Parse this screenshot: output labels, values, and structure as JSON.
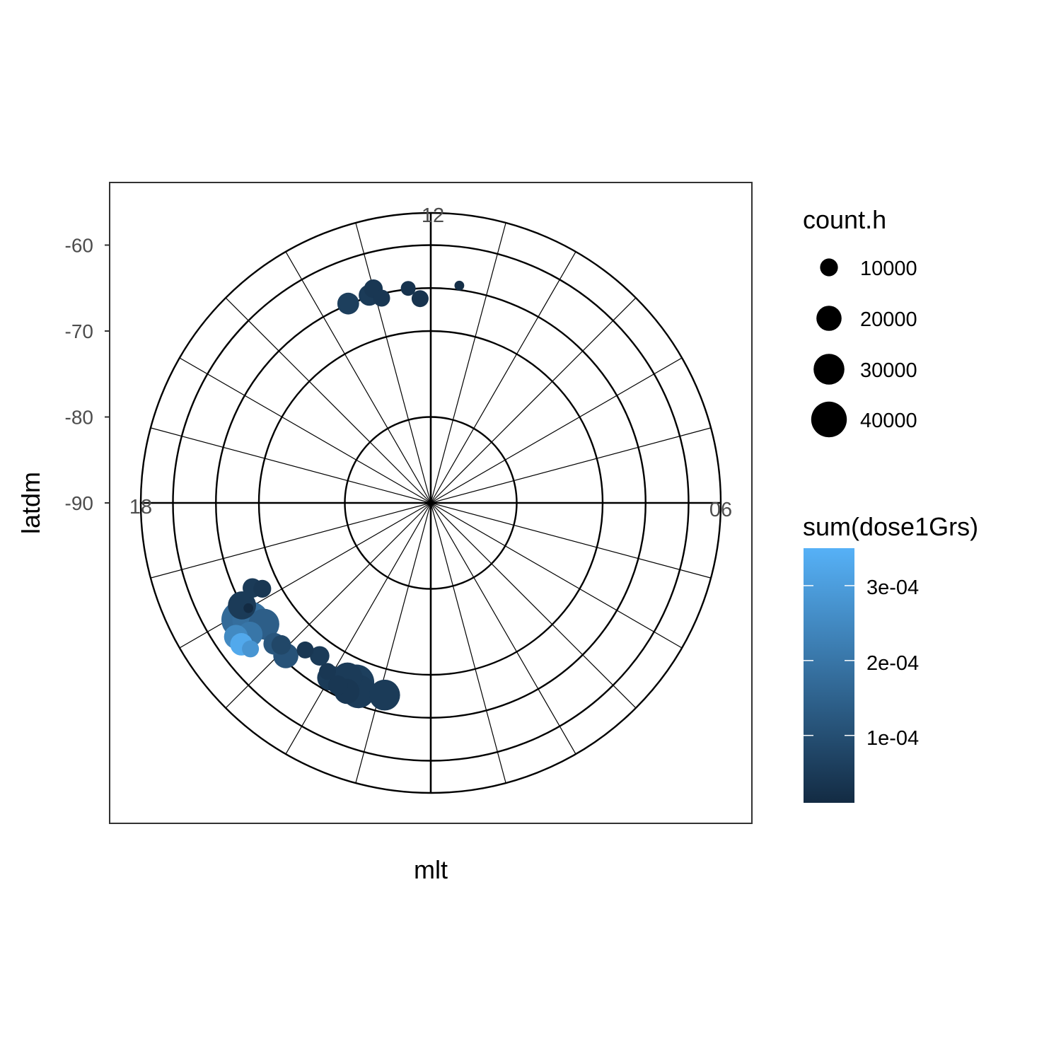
{
  "chart_data": {
    "type": "scatter",
    "coordinate_system": "polar",
    "xlabel": "mlt",
    "ylabel": "latdm",
    "y_ticks": [
      "-60",
      "-70",
      "-80",
      "-90"
    ],
    "ylim": [
      -90,
      -56
    ],
    "rings_deg": [
      -60,
      -65,
      -70,
      -80
    ],
    "spokes": 24,
    "clock_labels": [
      "12",
      "18",
      "06"
    ],
    "grid": true,
    "legend_position": "right",
    "size_legend": {
      "title": "count.h",
      "values": [
        10000,
        20000,
        30000,
        40000
      ],
      "labels": [
        "10000",
        "20000",
        "30000",
        "40000"
      ]
    },
    "color_legend": {
      "title": "sum(dose1Grs)",
      "range": [
        1e-05,
        0.00035
      ],
      "breaks": [
        0.0001,
        0.0002,
        0.0003
      ],
      "labels": [
        "1e-04",
        "2e-04",
        "3e-04"
      ],
      "low_color": "#132B43",
      "high_color": "#56B1F7"
    },
    "points": [
      {
        "mlt": 11.5,
        "lat": -64.5,
        "count": 3000,
        "dose": 2e-05
      },
      {
        "mlt": 12.2,
        "lat": -66.2,
        "count": 9000,
        "dose": 3e-05
      },
      {
        "mlt": 12.4,
        "lat": -64.9,
        "count": 7000,
        "dose": 3e-05
      },
      {
        "mlt": 12.9,
        "lat": -65.5,
        "count": 9000,
        "dose": 4e-05
      },
      {
        "mlt": 13.0,
        "lat": -64.2,
        "count": 11000,
        "dose": 4e-05
      },
      {
        "mlt": 13.1,
        "lat": -64.8,
        "count": 14000,
        "dose": 5e-05
      },
      {
        "mlt": 13.5,
        "lat": -64.9,
        "count": 15000,
        "dose": 6e-05
      },
      {
        "mlt": 19.9,
        "lat": -65.0,
        "count": 25000,
        "dose": 5e-05
      },
      {
        "mlt": 19.7,
        "lat": -67.0,
        "count": 12000,
        "dose": 5e-05
      },
      {
        "mlt": 19.8,
        "lat": -68.0,
        "count": 10000,
        "dose": 4e-05
      },
      {
        "mlt": 20.1,
        "lat": -64.0,
        "count": 45000,
        "dose": 0.00017
      },
      {
        "mlt": 20.2,
        "lat": -65.0,
        "count": 42000,
        "dose": 0.00018
      },
      {
        "mlt": 20.4,
        "lat": -64.0,
        "count": 20000,
        "dose": 0.0002
      },
      {
        "mlt": 20.3,
        "lat": -62.5,
        "count": 18000,
        "dose": 0.00025
      },
      {
        "mlt": 20.45,
        "lat": -62.5,
        "count": 16000,
        "dose": 0.00033
      },
      {
        "mlt": 20.6,
        "lat": -63.0,
        "count": 9000,
        "dose": 0.00028
      },
      {
        "mlt": 20.0,
        "lat": -65.5,
        "count": 3000,
        "dose": 1e-05
      },
      {
        "mlt": 20.4,
        "lat": -66.0,
        "count": 30000,
        "dose": 0.00014
      },
      {
        "mlt": 20.8,
        "lat": -65.5,
        "count": 15000,
        "dose": 0.00012
      },
      {
        "mlt": 20.9,
        "lat": -66.0,
        "count": 12000,
        "dose": 8e-05
      },
      {
        "mlt": 21.1,
        "lat": -65.5,
        "count": 20000,
        "dose": 0.00011
      },
      {
        "mlt": 21.3,
        "lat": -67.5,
        "count": 9000,
        "dose": 4e-05
      },
      {
        "mlt": 21.6,
        "lat": -68.0,
        "count": 12000,
        "dose": 5e-05
      },
      {
        "mlt": 21.9,
        "lat": -67.0,
        "count": 9000,
        "dose": 4e-05
      },
      {
        "mlt": 22.0,
        "lat": -66.5,
        "count": 20000,
        "dose": 5e-05
      },
      {
        "mlt": 22.2,
        "lat": -66.2,
        "count": 12000,
        "dose": 4e-05
      },
      {
        "mlt": 22.3,
        "lat": -67.5,
        "count": 28000,
        "dose": 5e-05
      },
      {
        "mlt": 22.4,
        "lat": -66.0,
        "count": 20000,
        "dose": 4e-05
      },
      {
        "mlt": 22.5,
        "lat": -67.4,
        "count": 40000,
        "dose": 6e-05
      },
      {
        "mlt": 22.6,
        "lat": -66.5,
        "count": 35000,
        "dose": 5e-05
      },
      {
        "mlt": 23.1,
        "lat": -67.0,
        "count": 30000,
        "dose": 5e-05
      }
    ]
  }
}
